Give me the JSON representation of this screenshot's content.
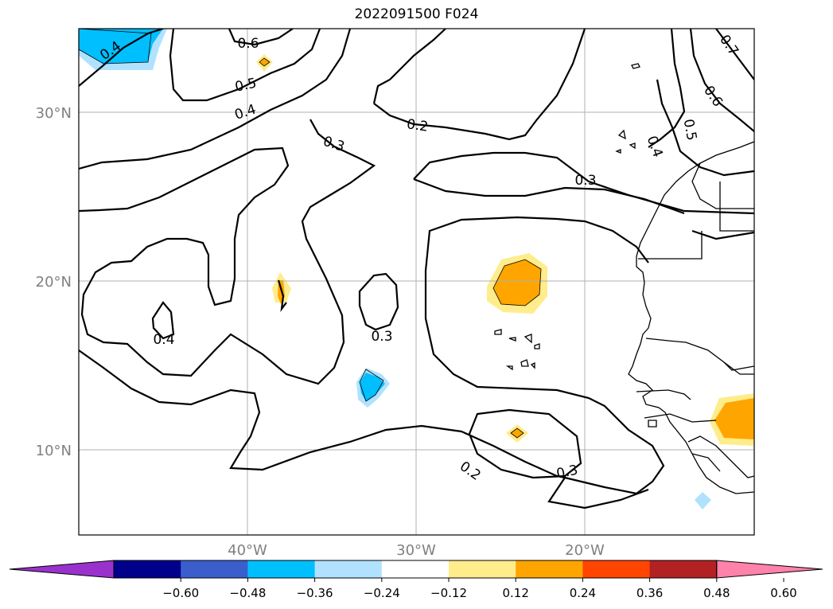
{
  "title": "2022091500 F024",
  "lat_labels": [
    "30°N",
    "20°N",
    "10°N"
  ],
  "lon_labels": [
    "40°W",
    "30°W",
    "20°W"
  ],
  "colorbar": {
    "ticks": [
      "−0.60",
      "−0.48",
      "−0.36",
      "−0.24",
      "−0.12",
      "0.12",
      "0.24",
      "0.36",
      "0.48",
      "0.60"
    ],
    "colors": [
      "#9932cc",
      "#00008b",
      "#3a5fcd",
      "#00bfff",
      "#b0e2ff",
      "#ffffff",
      "#ffec8b",
      "#ffa500",
      "#ff4500",
      "#b22222",
      "#ff82ab"
    ]
  },
  "contour_labels": [
    "0.6",
    "0.5",
    "0.4",
    "0.4",
    "0.3",
    "0.2",
    "0.3",
    "0.4",
    "0.3",
    "0.2",
    "0.3",
    "0.7",
    "0.6",
    "0.5",
    "0.4"
  ]
}
